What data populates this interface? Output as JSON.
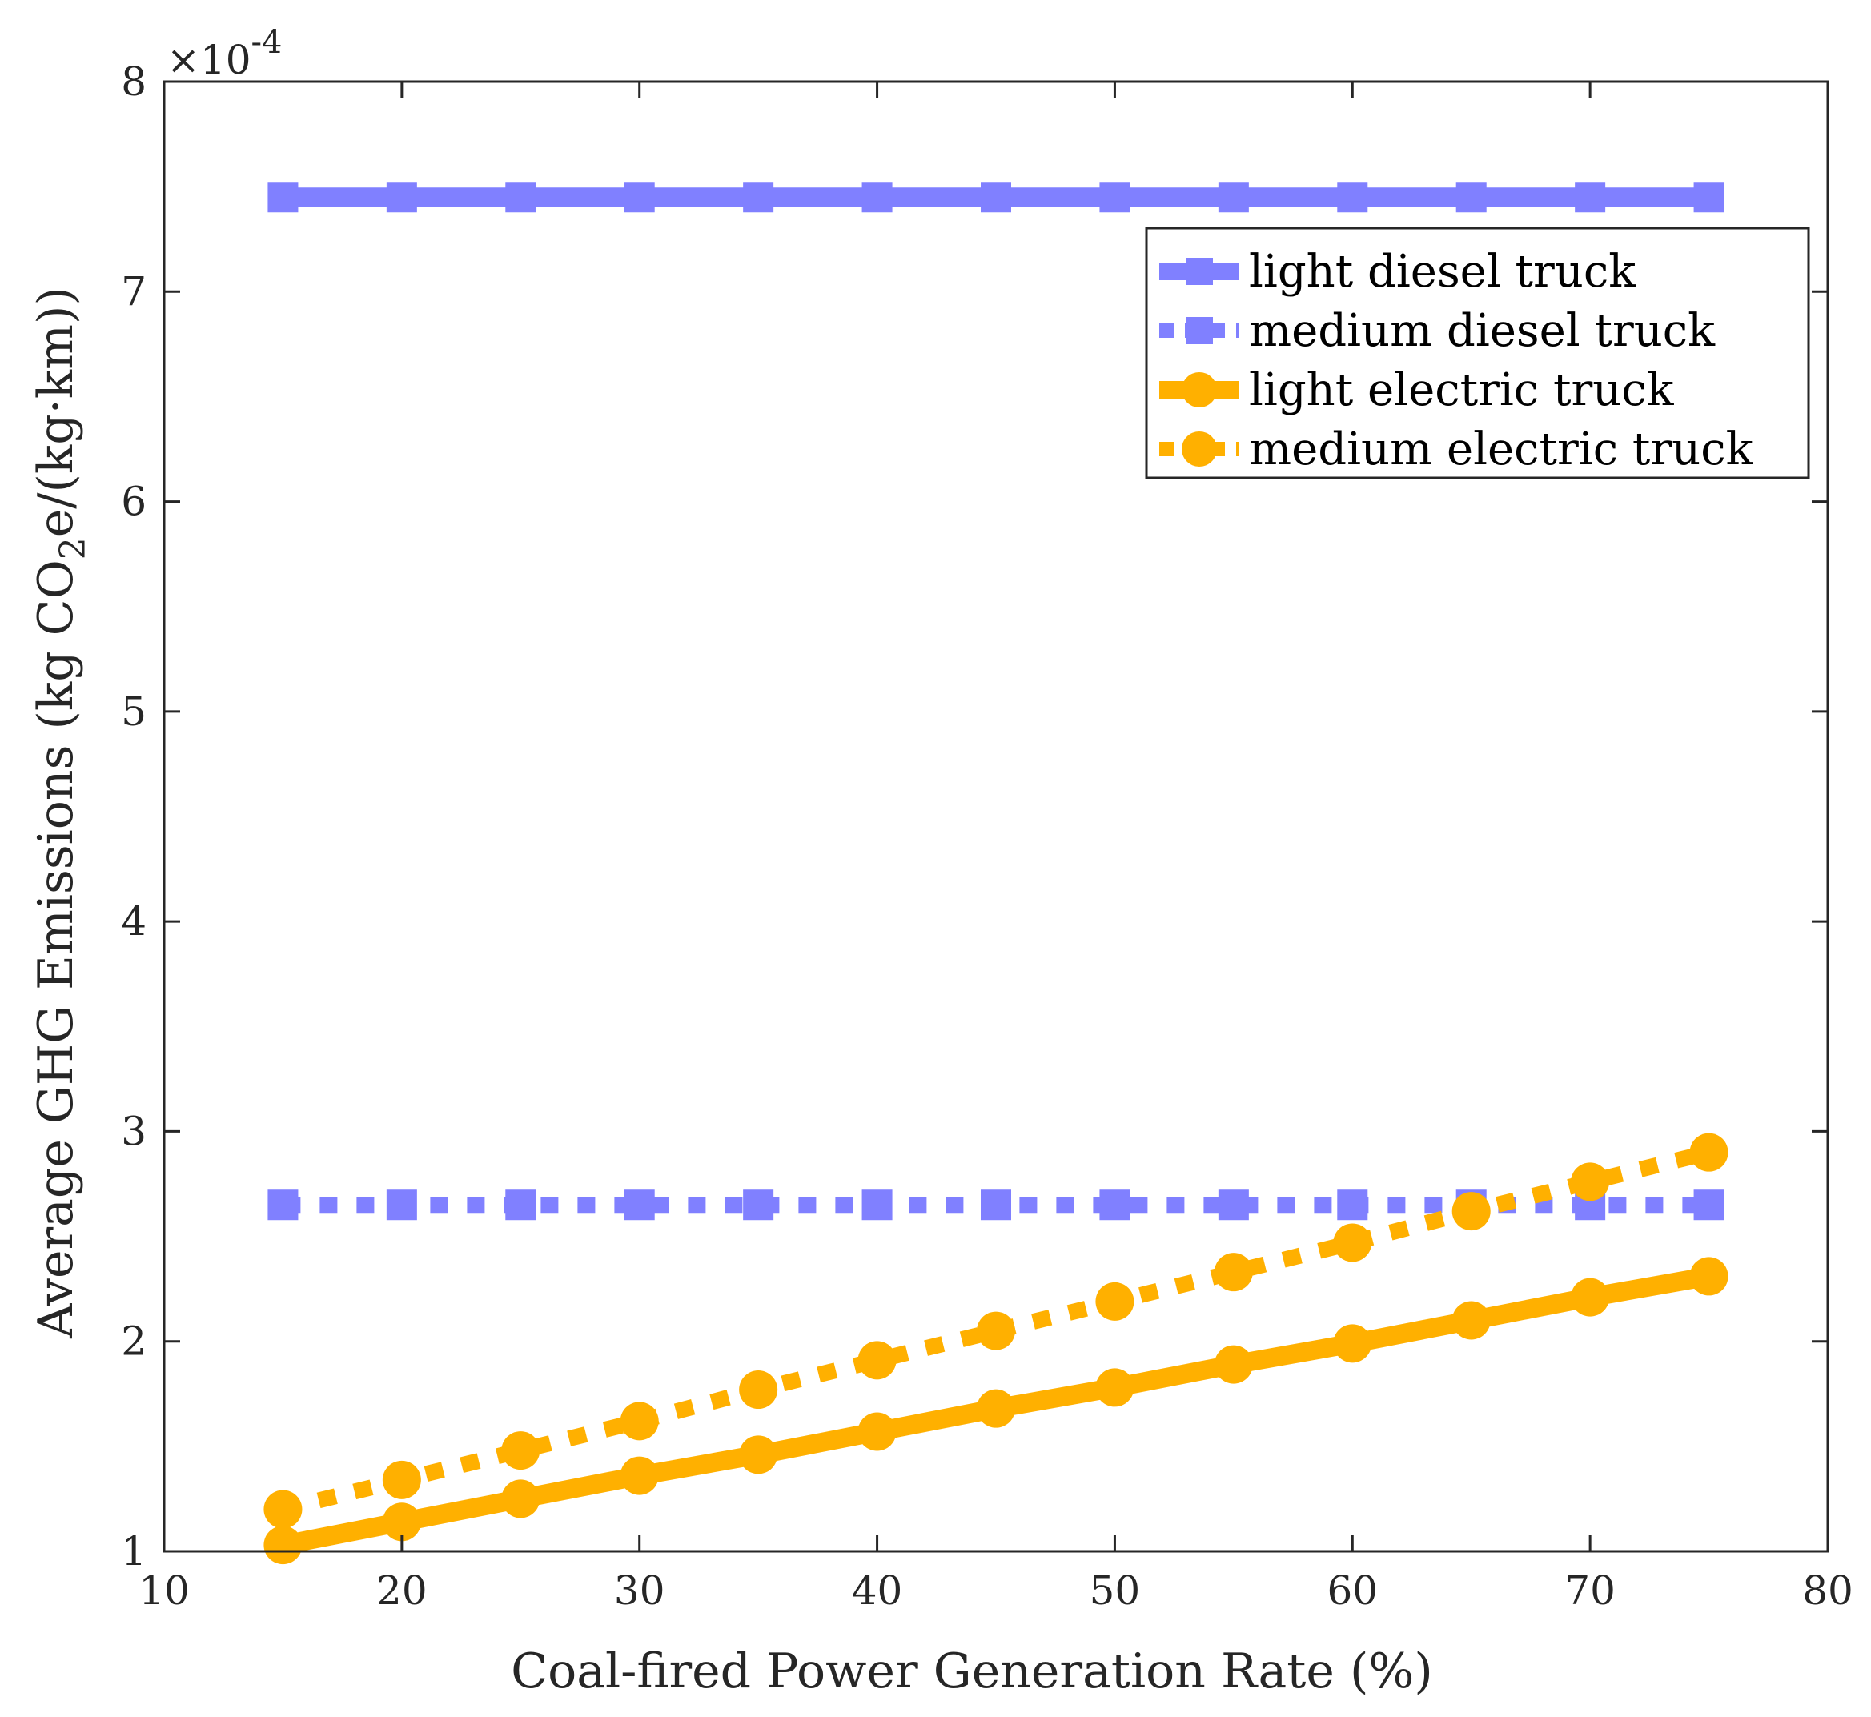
{
  "chart_data": {
    "type": "line",
    "title": "",
    "xlabel": "Coal-fired Power Generation Rate (%)",
    "ylabel": {
      "prefix": "Average GHG Emissions (kg CO",
      "subscript": "2",
      "suffix": "e/(kg·km))"
    },
    "exponent_label": {
      "base": "×10",
      "power": "-4"
    },
    "xlim": [
      10,
      80
    ],
    "ylim": [
      1,
      8
    ],
    "xticks": [
      10,
      20,
      30,
      40,
      50,
      60,
      70,
      80
    ],
    "yticks": [
      1,
      2,
      3,
      4,
      5,
      6,
      7,
      8
    ],
    "grid": false,
    "legend_position": "top-right",
    "x": [
      15,
      20,
      25,
      30,
      35,
      40,
      45,
      50,
      55,
      60,
      65,
      70,
      75
    ],
    "series": [
      {
        "name": "light diesel truck",
        "style": "solid",
        "marker": "square",
        "color": "#8080ff",
        "values": [
          7.45,
          7.45,
          7.45,
          7.45,
          7.45,
          7.45,
          7.45,
          7.45,
          7.45,
          7.45,
          7.45,
          7.45,
          7.45
        ]
      },
      {
        "name": "medium diesel truck",
        "style": "dotted",
        "marker": "square",
        "color": "#8080ff",
        "values": [
          2.65,
          2.65,
          2.65,
          2.65,
          2.65,
          2.65,
          2.65,
          2.65,
          2.65,
          2.65,
          2.65,
          2.65,
          2.65
        ]
      },
      {
        "name": "light electric truck",
        "style": "solid",
        "marker": "circle",
        "color": "#ffb000",
        "values": [
          1.03,
          1.14,
          1.25,
          1.36,
          1.46,
          1.57,
          1.68,
          1.78,
          1.89,
          1.99,
          2.1,
          2.21,
          2.31
        ]
      },
      {
        "name": "medium electric truck",
        "style": "dotted",
        "marker": "circle",
        "color": "#ffb000",
        "values": [
          1.2,
          1.34,
          1.48,
          1.62,
          1.77,
          1.91,
          2.05,
          2.19,
          2.33,
          2.47,
          2.62,
          2.76,
          2.9
        ]
      }
    ]
  }
}
